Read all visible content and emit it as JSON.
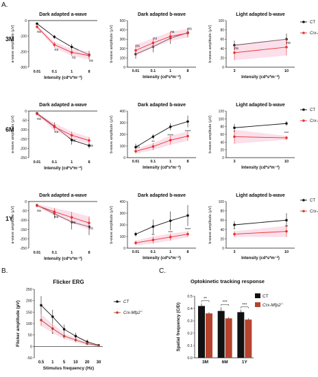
{
  "panel_labels": [
    "A.",
    "B.",
    "C."
  ],
  "row_labels": [
    "3M",
    "6M",
    "1Y"
  ],
  "colors": {
    "ct": "#111111",
    "ko": "#e8302f",
    "ko_dark": "#b5432d",
    "shade": "#f6b8d0"
  },
  "legend_a": {
    "ct": "CT",
    "ko": "Crx-Mfp2",
    "ko_sup": "-/-"
  },
  "chart_data": [
    {
      "id": "3m-a",
      "type": "line",
      "row": 0,
      "col": 0,
      "title": "Dark adapted a-wave",
      "xlabel": "Intensity (cd*s*m⁻²)",
      "ylabel": "a-wave amplitude (µV)",
      "x": [
        "0.01",
        "0.1",
        "1",
        "8"
      ],
      "ylim": [
        -300,
        0
      ],
      "yticks": [
        "0",
        "-100",
        "-200",
        "-300"
      ],
      "series": [
        {
          "name": "CT",
          "values": [
            -20,
            -105,
            -170,
            -220
          ],
          "err": [
            8,
            12,
            20,
            25
          ]
        },
        {
          "name": "Crx-Mfp2-/-",
          "values": [
            -40,
            -155,
            -205,
            -225
          ],
          "err": [
            10,
            18,
            22,
            25
          ]
        }
      ],
      "annotations": [
        "ns",
        "ns",
        "ns",
        "ns"
      ]
    },
    {
      "id": "3m-b",
      "type": "line",
      "row": 0,
      "col": 1,
      "title": "Dark adapted b-wave",
      "xlabel": "Intensity (cd*s*m⁻²)",
      "ylabel": "b-wave amplitude (µV)",
      "x": [
        "0.01",
        "0.1",
        "1",
        "8"
      ],
      "ylim": [
        0,
        500
      ],
      "yticks": [
        "0",
        "100",
        "200",
        "300",
        "400",
        "500"
      ],
      "series": [
        {
          "name": "CT",
          "values": [
            140,
            220,
            310,
            370
          ],
          "err": [
            50,
            60,
            60,
            50
          ]
        },
        {
          "name": "Crx-Mfp2-/-",
          "values": [
            180,
            260,
            330,
            365
          ],
          "err": [
            60,
            50,
            50,
            45
          ]
        }
      ],
      "annotations": [
        "ns",
        "ns",
        "ns",
        "ns"
      ]
    },
    {
      "id": "3m-l",
      "type": "line",
      "row": 0,
      "col": 2,
      "title": "Light adapted b-wave",
      "xlabel": "Intensity (cd*s*m⁻²)",
      "ylabel": "b-wave amplitude (µV)",
      "x": [
        "3",
        "10"
      ],
      "ylim": [
        0,
        100
      ],
      "yticks": [
        "0",
        "20",
        "40",
        "60",
        "80",
        "100"
      ],
      "series": [
        {
          "name": "CT",
          "values": [
            47,
            60
          ],
          "err": [
            10,
            12
          ]
        },
        {
          "name": "Crx-Mfp2-/-",
          "values": [
            31,
            43
          ],
          "err": [
            16,
            18
          ]
        }
      ],
      "annotations": [
        "ns",
        "ns"
      ]
    },
    {
      "id": "6m-a",
      "type": "line",
      "row": 1,
      "col": 0,
      "title": "Dark adapted a-wave",
      "xlabel": "Intensity (cd*s*m⁻²)",
      "ylabel": "a-wave amplitude (µV)",
      "x": [
        "0.01",
        "0.1",
        "1",
        "8"
      ],
      "ylim": [
        -250,
        0
      ],
      "yticks": [
        "0",
        "-50",
        "-100",
        "-150",
        "-200",
        "-250"
      ],
      "series": [
        {
          "name": "CT",
          "values": [
            -12,
            -80,
            -155,
            -185
          ],
          "err": [
            5,
            20,
            25,
            15
          ]
        },
        {
          "name": "Crx-Mfp2-/-",
          "values": [
            -15,
            -85,
            -130,
            -158
          ],
          "err": [
            5,
            20,
            20,
            18
          ]
        }
      ],
      "annotations": [
        "ns",
        "ns",
        "ns",
        "ns"
      ]
    },
    {
      "id": "6m-b",
      "type": "line",
      "row": 1,
      "col": 1,
      "title": "Dark adapted b-wave",
      "xlabel": "Intensity (cd*s*m⁻²)",
      "ylabel": "b-wave amplitude (µV)",
      "x": [
        "0.01",
        "0.1",
        "1",
        "8"
      ],
      "ylim": [
        0,
        400
      ],
      "yticks": [
        "0",
        "100",
        "200",
        "300",
        "400"
      ],
      "series": [
        {
          "name": "CT",
          "values": [
            90,
            180,
            265,
            310
          ],
          "err": [
            30,
            20,
            30,
            50
          ]
        },
        {
          "name": "Crx-Mfp2-/-",
          "values": [
            55,
            95,
            150,
            185
          ],
          "err": [
            20,
            30,
            40,
            40
          ]
        }
      ],
      "annotations": [
        "ns",
        "**",
        "****",
        "****"
      ]
    },
    {
      "id": "6m-l",
      "type": "line",
      "row": 1,
      "col": 2,
      "title": "Light adapted b-wave",
      "xlabel": "Intensity (cd*s*m⁻²)",
      "ylabel": "b-wave amplitude (µV)",
      "x": [
        "3",
        "10"
      ],
      "ylim": [
        0,
        120
      ],
      "yticks": [
        "0",
        "20",
        "40",
        "60",
        "80",
        "100",
        "120"
      ],
      "series": [
        {
          "name": "CT",
          "values": [
            77,
            88
          ],
          "err": [
            10,
            6
          ]
        },
        {
          "name": "Crx-Mfp2-/-",
          "values": [
            54,
            51
          ],
          "err": [
            18,
            5
          ]
        }
      ],
      "annotations": [
        "*",
        "***"
      ]
    },
    {
      "id": "1y-a",
      "type": "line",
      "row": 2,
      "col": 0,
      "title": "Dark adapted a-wave",
      "xlabel": "Intensity (cd*s*m⁻²)",
      "ylabel": "a-wave amplitude (µV)",
      "x": [
        "0.01",
        "0.1",
        "1",
        "8"
      ],
      "ylim": [
        -250,
        0
      ],
      "yticks": [
        "0",
        "-50",
        "-100",
        "-150",
        "-200",
        "-250"
      ],
      "series": [
        {
          "name": "CT",
          "values": [
            -20,
            -65,
            -110,
            -135
          ],
          "err": [
            8,
            25,
            40,
            45
          ]
        },
        {
          "name": "Crx-Mfp2-/-",
          "values": [
            -22,
            -55,
            -85,
            -115
          ],
          "err": [
            8,
            20,
            30,
            35
          ]
        }
      ],
      "annotations": [
        "ns",
        "ns",
        "ns",
        "ns"
      ]
    },
    {
      "id": "1y-b",
      "type": "line",
      "row": 2,
      "col": 1,
      "title": "Dark adapted b-wave",
      "xlabel": "Intensity (cd*s*m⁻²)",
      "ylabel": "b-wave amplitude (µV)",
      "x": [
        "0.01",
        "0.1",
        "1",
        "8"
      ],
      "ylim": [
        0,
        400
      ],
      "yticks": [
        "0",
        "100",
        "200",
        "300",
        "400"
      ],
      "series": [
        {
          "name": "CT",
          "values": [
            120,
            185,
            235,
            280
          ],
          "err": [
            20,
            60,
            80,
            90
          ]
        },
        {
          "name": "Crx-Mfp2-/-",
          "values": [
            45,
            70,
            95,
            120
          ],
          "err": [
            20,
            30,
            30,
            25
          ]
        }
      ],
      "annotations": [
        "",
        "**",
        "***",
        "****"
      ]
    },
    {
      "id": "1y-l",
      "type": "line",
      "row": 2,
      "col": 2,
      "title": "Light adapted b-wave",
      "xlabel": "Intensity (cd*s*m⁻²)",
      "ylabel": "b-wave amplitude (µV)",
      "x": [
        "3",
        "10"
      ],
      "ylim": [
        0,
        100
      ],
      "yticks": [
        "0",
        "20",
        "40",
        "60",
        "80",
        "100"
      ],
      "series": [
        {
          "name": "CT",
          "values": [
            50,
            60
          ],
          "err": [
            8,
            15
          ]
        },
        {
          "name": "Crx-Mfp2-/-",
          "values": [
            30,
            36
          ],
          "err": [
            6,
            12
          ]
        }
      ],
      "annotations": [
        "*",
        "**"
      ]
    },
    {
      "id": "flicker",
      "type": "line",
      "title": "Flicker ERG",
      "xlabel": "Stimulus frequency (Hz)",
      "ylabel": "Flicker amplitude (µV)",
      "x": [
        "0.5",
        "1",
        "5",
        "10",
        "20",
        "30"
      ],
      "ylim": [
        -50,
        250
      ],
      "yticks": [
        "-50",
        "0",
        "50",
        "100",
        "150",
        "200",
        "250"
      ],
      "series": [
        {
          "name": "CT",
          "values": [
            180,
            130,
            75,
            45,
            20,
            5
          ],
          "err": [
            40,
            30,
            20,
            15,
            10,
            3
          ]
        },
        {
          "name": "Crx-Mfp2-/-",
          "values": [
            115,
            78,
            45,
            28,
            12,
            3
          ],
          "err": [
            25,
            20,
            12,
            10,
            6,
            2
          ]
        }
      ],
      "annotations": [
        "",
        "*",
        "",
        "",
        "",
        ""
      ]
    },
    {
      "id": "okt",
      "type": "bar",
      "title": "Optokinetic tracking response",
      "ylabel": "Spatial frequency (C/D)",
      "categories": [
        "3M",
        "6M",
        "1Y"
      ],
      "ylim": [
        0,
        0.5
      ],
      "yticks": [
        "0.0",
        "0.1",
        "0.2",
        "0.3",
        "0.4",
        "0.5"
      ],
      "series": [
        {
          "name": "CT",
          "values": [
            0.42,
            0.38,
            0.37
          ],
          "err": [
            0.02,
            0.03,
            0.02
          ]
        },
        {
          "name": "Crx-Mfp2-/-",
          "values": [
            0.36,
            0.32,
            0.31
          ],
          "err": [
            0.01,
            0.01,
            0.01
          ]
        }
      ],
      "annotations": [
        "**",
        "***",
        "***"
      ]
    }
  ]
}
